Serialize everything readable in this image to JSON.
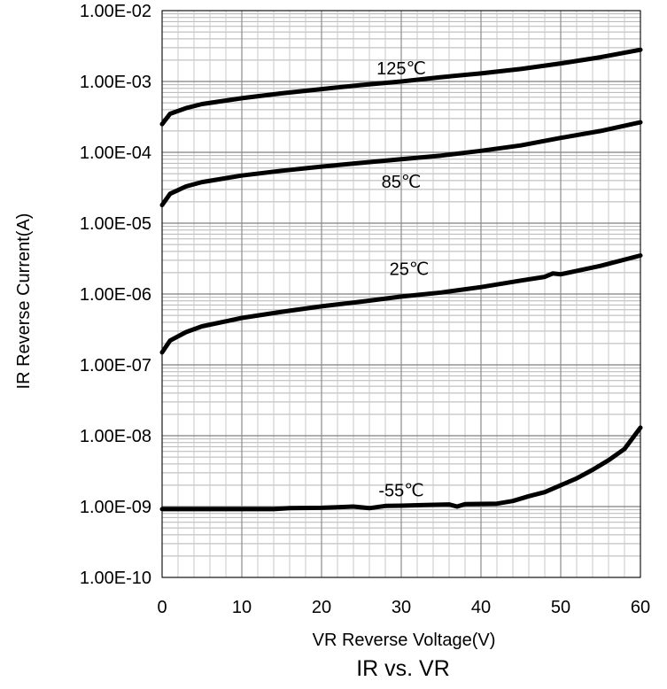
{
  "chart_data": {
    "type": "line",
    "title": "IR vs. VR",
    "xlabel": "VR Reverse Voltage(V)",
    "ylabel": "IR Reverse Current(A)",
    "xlim": [
      0,
      60
    ],
    "ylim": [
      1e-10,
      0.01
    ],
    "y_scale": "log",
    "grid": true,
    "x_ticks": [
      "0",
      "10",
      "20",
      "30",
      "40",
      "50",
      "60"
    ],
    "y_ticks": [
      "1.00E-10",
      "1.00E-09",
      "1.00E-08",
      "1.00E-07",
      "1.00E-06",
      "1.00E-05",
      "1.00E-04",
      "1.00E-03",
      "1.00E-02"
    ],
    "series": [
      {
        "name": "125℃",
        "label_at": [
          30,
          0.00125
        ],
        "points": [
          [
            0,
            0.00025
          ],
          [
            1,
            0.00035
          ],
          [
            3,
            0.00042
          ],
          [
            5,
            0.00048
          ],
          [
            10,
            0.00058
          ],
          [
            15,
            0.00068
          ],
          [
            20,
            0.00078
          ],
          [
            25,
            0.00089
          ],
          [
            30,
            0.001
          ],
          [
            35,
            0.00115
          ],
          [
            40,
            0.0013
          ],
          [
            45,
            0.0015
          ],
          [
            50,
            0.0018
          ],
          [
            55,
            0.0022
          ],
          [
            60,
            0.0028
          ]
        ]
      },
      {
        "name": "85℃",
        "label_at": [
          30,
          3.15e-05
        ],
        "points": [
          [
            0,
            1.8e-05
          ],
          [
            1,
            2.6e-05
          ],
          [
            3,
            3.3e-05
          ],
          [
            5,
            3.8e-05
          ],
          [
            10,
            4.7e-05
          ],
          [
            15,
            5.5e-05
          ],
          [
            20,
            6.3e-05
          ],
          [
            25,
            7.1e-05
          ],
          [
            30,
            8e-05
          ],
          [
            35,
            9e-05
          ],
          [
            40,
            0.000105
          ],
          [
            45,
            0.000125
          ],
          [
            50,
            0.00016
          ],
          [
            55,
            0.0002
          ],
          [
            60,
            0.000265
          ]
        ]
      },
      {
        "name": "25℃",
        "label_at": [
          31,
          1.85e-06
        ],
        "points": [
          [
            0,
            1.5e-07
          ],
          [
            1,
            2.2e-07
          ],
          [
            3,
            2.9e-07
          ],
          [
            5,
            3.5e-07
          ],
          [
            10,
            4.6e-07
          ],
          [
            15,
            5.6e-07
          ],
          [
            20,
            6.7e-07
          ],
          [
            25,
            7.8e-07
          ],
          [
            30,
            9.2e-07
          ],
          [
            35,
            1.05e-06
          ],
          [
            40,
            1.25e-06
          ],
          [
            45,
            1.55e-06
          ],
          [
            48,
            1.75e-06
          ],
          [
            49,
            1.95e-06
          ],
          [
            50,
            1.9e-06
          ],
          [
            55,
            2.5e-06
          ],
          [
            60,
            3.5e-06
          ]
        ]
      },
      {
        "name": "-55℃",
        "label_at": [
          30,
          1.4e-09
        ],
        "points": [
          [
            0,
            9.2e-10
          ],
          [
            5,
            9.2e-10
          ],
          [
            10,
            9.2e-10
          ],
          [
            14,
            9.2e-10
          ],
          [
            16,
            9.5e-10
          ],
          [
            20,
            9.6e-10
          ],
          [
            22,
            9.8e-10
          ],
          [
            24,
            1e-09
          ],
          [
            26,
            9.5e-10
          ],
          [
            28,
            1.02e-09
          ],
          [
            30,
            1.03e-09
          ],
          [
            33,
            1.05e-09
          ],
          [
            36,
            1.07e-09
          ],
          [
            37,
            1e-09
          ],
          [
            38,
            1.08e-09
          ],
          [
            42,
            1.1e-09
          ],
          [
            44,
            1.2e-09
          ],
          [
            46,
            1.4e-09
          ],
          [
            48,
            1.6e-09
          ],
          [
            50,
            2e-09
          ],
          [
            52,
            2.5e-09
          ],
          [
            54,
            3.3e-09
          ],
          [
            56,
            4.5e-09
          ],
          [
            58,
            6.5e-09
          ],
          [
            60,
            1.3e-08
          ]
        ]
      }
    ]
  }
}
